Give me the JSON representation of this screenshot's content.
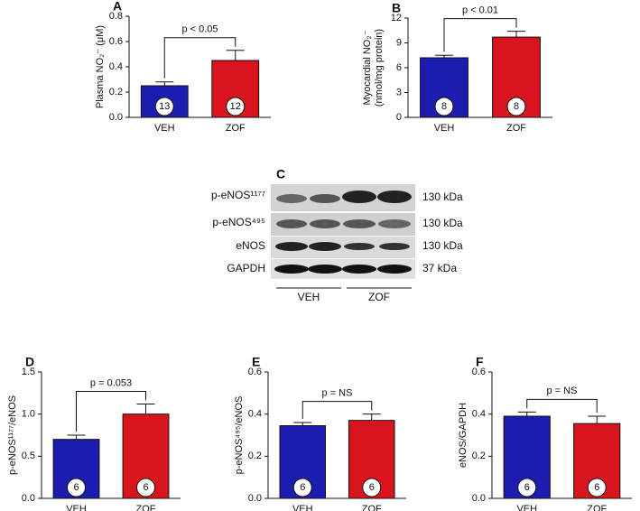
{
  "chart_data": [
    {
      "type": "bar",
      "panel": "A",
      "ylabel": [
        "Plasma NO₂⁻ (μM)"
      ],
      "annotation": "p < 0.05",
      "categories": [
        "VEH",
        "ZOF"
      ],
      "values": [
        0.25,
        0.45
      ],
      "errors": [
        0.03,
        0.08
      ],
      "n": [
        13,
        12
      ],
      "colors": [
        "#1c1cb0",
        "#d8141c"
      ],
      "ylim": [
        0,
        0.8
      ],
      "yticks": [
        {
          "value": 0,
          "label": "0.0"
        },
        0.2,
        0.4,
        0.6,
        0.8
      ]
    },
    {
      "type": "bar",
      "panel": "B",
      "ylabel": [
        "Myocardial NO₂⁻",
        "(nmol/mg protein)"
      ],
      "annotation": "p < 0.01",
      "categories": [
        "VEH",
        "ZOF"
      ],
      "values": [
        7.2,
        9.7
      ],
      "errors": [
        0.3,
        0.7
      ],
      "n": [
        8,
        8
      ],
      "colors": [
        "#1c1cb0",
        "#d8141c"
      ],
      "ylim": [
        0,
        12
      ],
      "yticks": [
        0,
        3,
        6,
        9,
        12
      ]
    },
    {
      "type": "bar",
      "panel": "D",
      "ylabel": [
        "p-eNOS¹¹⁷⁷/eNOS"
      ],
      "annotation": "p = 0.053",
      "categories": [
        "VEH",
        "ZOF"
      ],
      "values": [
        0.7,
        1.0
      ],
      "errors": [
        0.05,
        0.12
      ],
      "n": [
        6,
        6
      ],
      "colors": [
        "#1c1cb0",
        "#d8141c"
      ],
      "ylim": [
        0,
        1.5
      ],
      "yticks": [
        {
          "value": 0,
          "label": "0.0"
        },
        0.5,
        {
          "value": 1,
          "label": "1.0"
        },
        1.5
      ]
    },
    {
      "type": "bar",
      "panel": "E",
      "ylabel": [
        "p-eNOS⁴⁹⁵/eNOS"
      ],
      "annotation": "p = NS",
      "categories": [
        "VEH",
        "ZOF"
      ],
      "values": [
        0.345,
        0.37
      ],
      "errors": [
        0.015,
        0.03
      ],
      "n": [
        6,
        6
      ],
      "colors": [
        "#1c1cb0",
        "#d8141c"
      ],
      "ylim": [
        0,
        0.6
      ],
      "yticks": [
        {
          "value": 0,
          "label": "0.0"
        },
        0.2,
        0.4,
        0.6
      ]
    },
    {
      "type": "bar",
      "panel": "F",
      "ylabel": [
        "eNOS/GAPDH"
      ],
      "annotation": "p = NS",
      "categories": [
        "VEH",
        "ZOF"
      ],
      "values": [
        0.39,
        0.355
      ],
      "errors": [
        0.02,
        0.035
      ],
      "n": [
        6,
        6
      ],
      "colors": [
        "#1c1cb0",
        "#d8141c"
      ],
      "ylim": [
        0,
        0.6
      ],
      "yticks": [
        {
          "value": 0,
          "label": "0.0"
        },
        0.2,
        0.4,
        0.6
      ]
    }
  ],
  "blot": {
    "panel": "C",
    "rows": [
      {
        "label": "p-eNOS¹¹⁷⁷",
        "size": "130 kDa"
      },
      {
        "label": "p-eNOS⁴⁹⁵",
        "size": "130 kDa"
      },
      {
        "label": "eNOS",
        "size": "130 kDa"
      },
      {
        "label": "GAPDH",
        "size": "37 kDa"
      }
    ],
    "groups": [
      "VEH",
      "ZOF"
    ]
  }
}
